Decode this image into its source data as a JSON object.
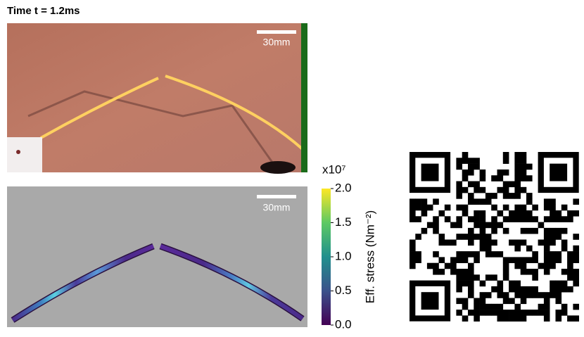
{
  "title": "Time t = 1.2ms",
  "photo": {
    "scale_bar": "30mm"
  },
  "simulation": {
    "scale_bar": "30mm"
  },
  "colorbar": {
    "multiplier": "x10⁷",
    "label": "Eff. stress (Nm⁻²)",
    "lim": [
      0,
      2
    ],
    "ticks": [
      {
        "value": 0,
        "label": "0.0"
      },
      {
        "value": 0.5,
        "label": "0.5"
      },
      {
        "value": 1,
        "label": "1.0"
      },
      {
        "value": 1.5,
        "label": "1.5"
      },
      {
        "value": 2,
        "label": "2.0"
      }
    ]
  }
}
